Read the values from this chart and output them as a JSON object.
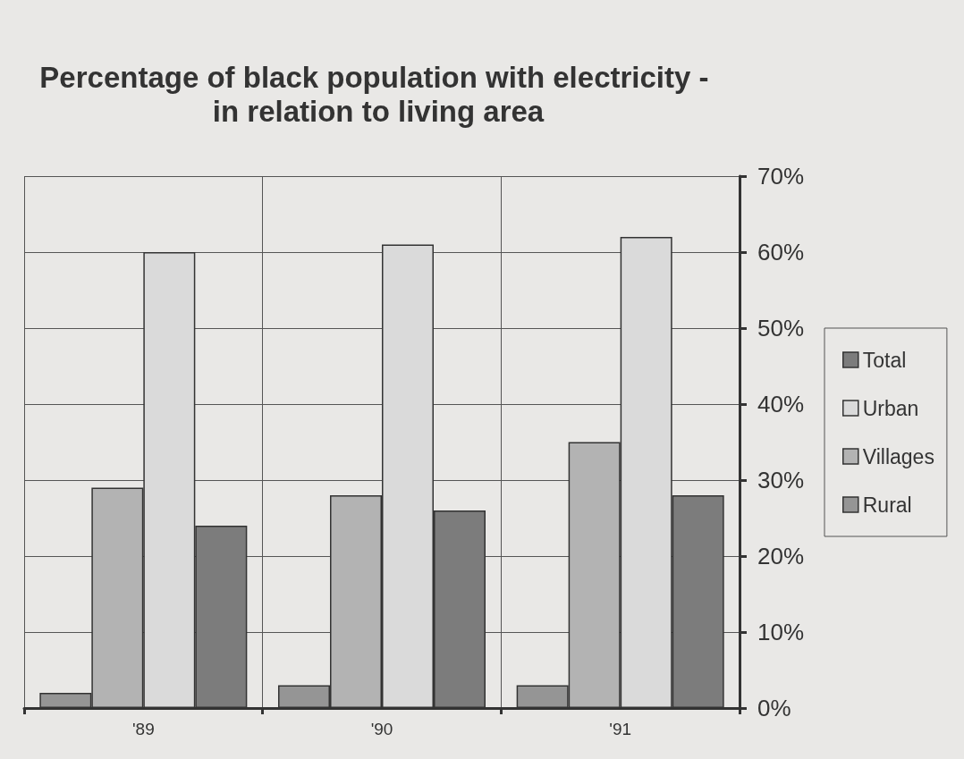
{
  "chart_data": {
    "type": "bar",
    "title": "Percentage of black population with electricity - in relation to living area",
    "categories": [
      "'89",
      "'90",
      "'91"
    ],
    "series": [
      {
        "name": "Rural",
        "color": "#959595",
        "values": [
          2,
          3,
          3
        ]
      },
      {
        "name": "Villages",
        "color": "#b3b3b3",
        "values": [
          29,
          28,
          35
        ]
      },
      {
        "name": "Urban",
        "color": "#dadada",
        "values": [
          60,
          61,
          62
        ]
      },
      {
        "name": "Total",
        "color": "#7c7c7c",
        "values": [
          24,
          26,
          28
        ]
      }
    ],
    "ylim": [
      0,
      70
    ],
    "yticks": [
      {
        "value": 0,
        "label": "0%"
      },
      {
        "value": 10,
        "label": "10%"
      },
      {
        "value": 20,
        "label": "20%"
      },
      {
        "value": 30,
        "label": "30%"
      },
      {
        "value": 40,
        "label": "40%"
      },
      {
        "value": 50,
        "label": "50%"
      },
      {
        "value": 60,
        "label": "60%"
      },
      {
        "value": 70,
        "label": "70%"
      }
    ],
    "grid": true,
    "legend": "right"
  }
}
